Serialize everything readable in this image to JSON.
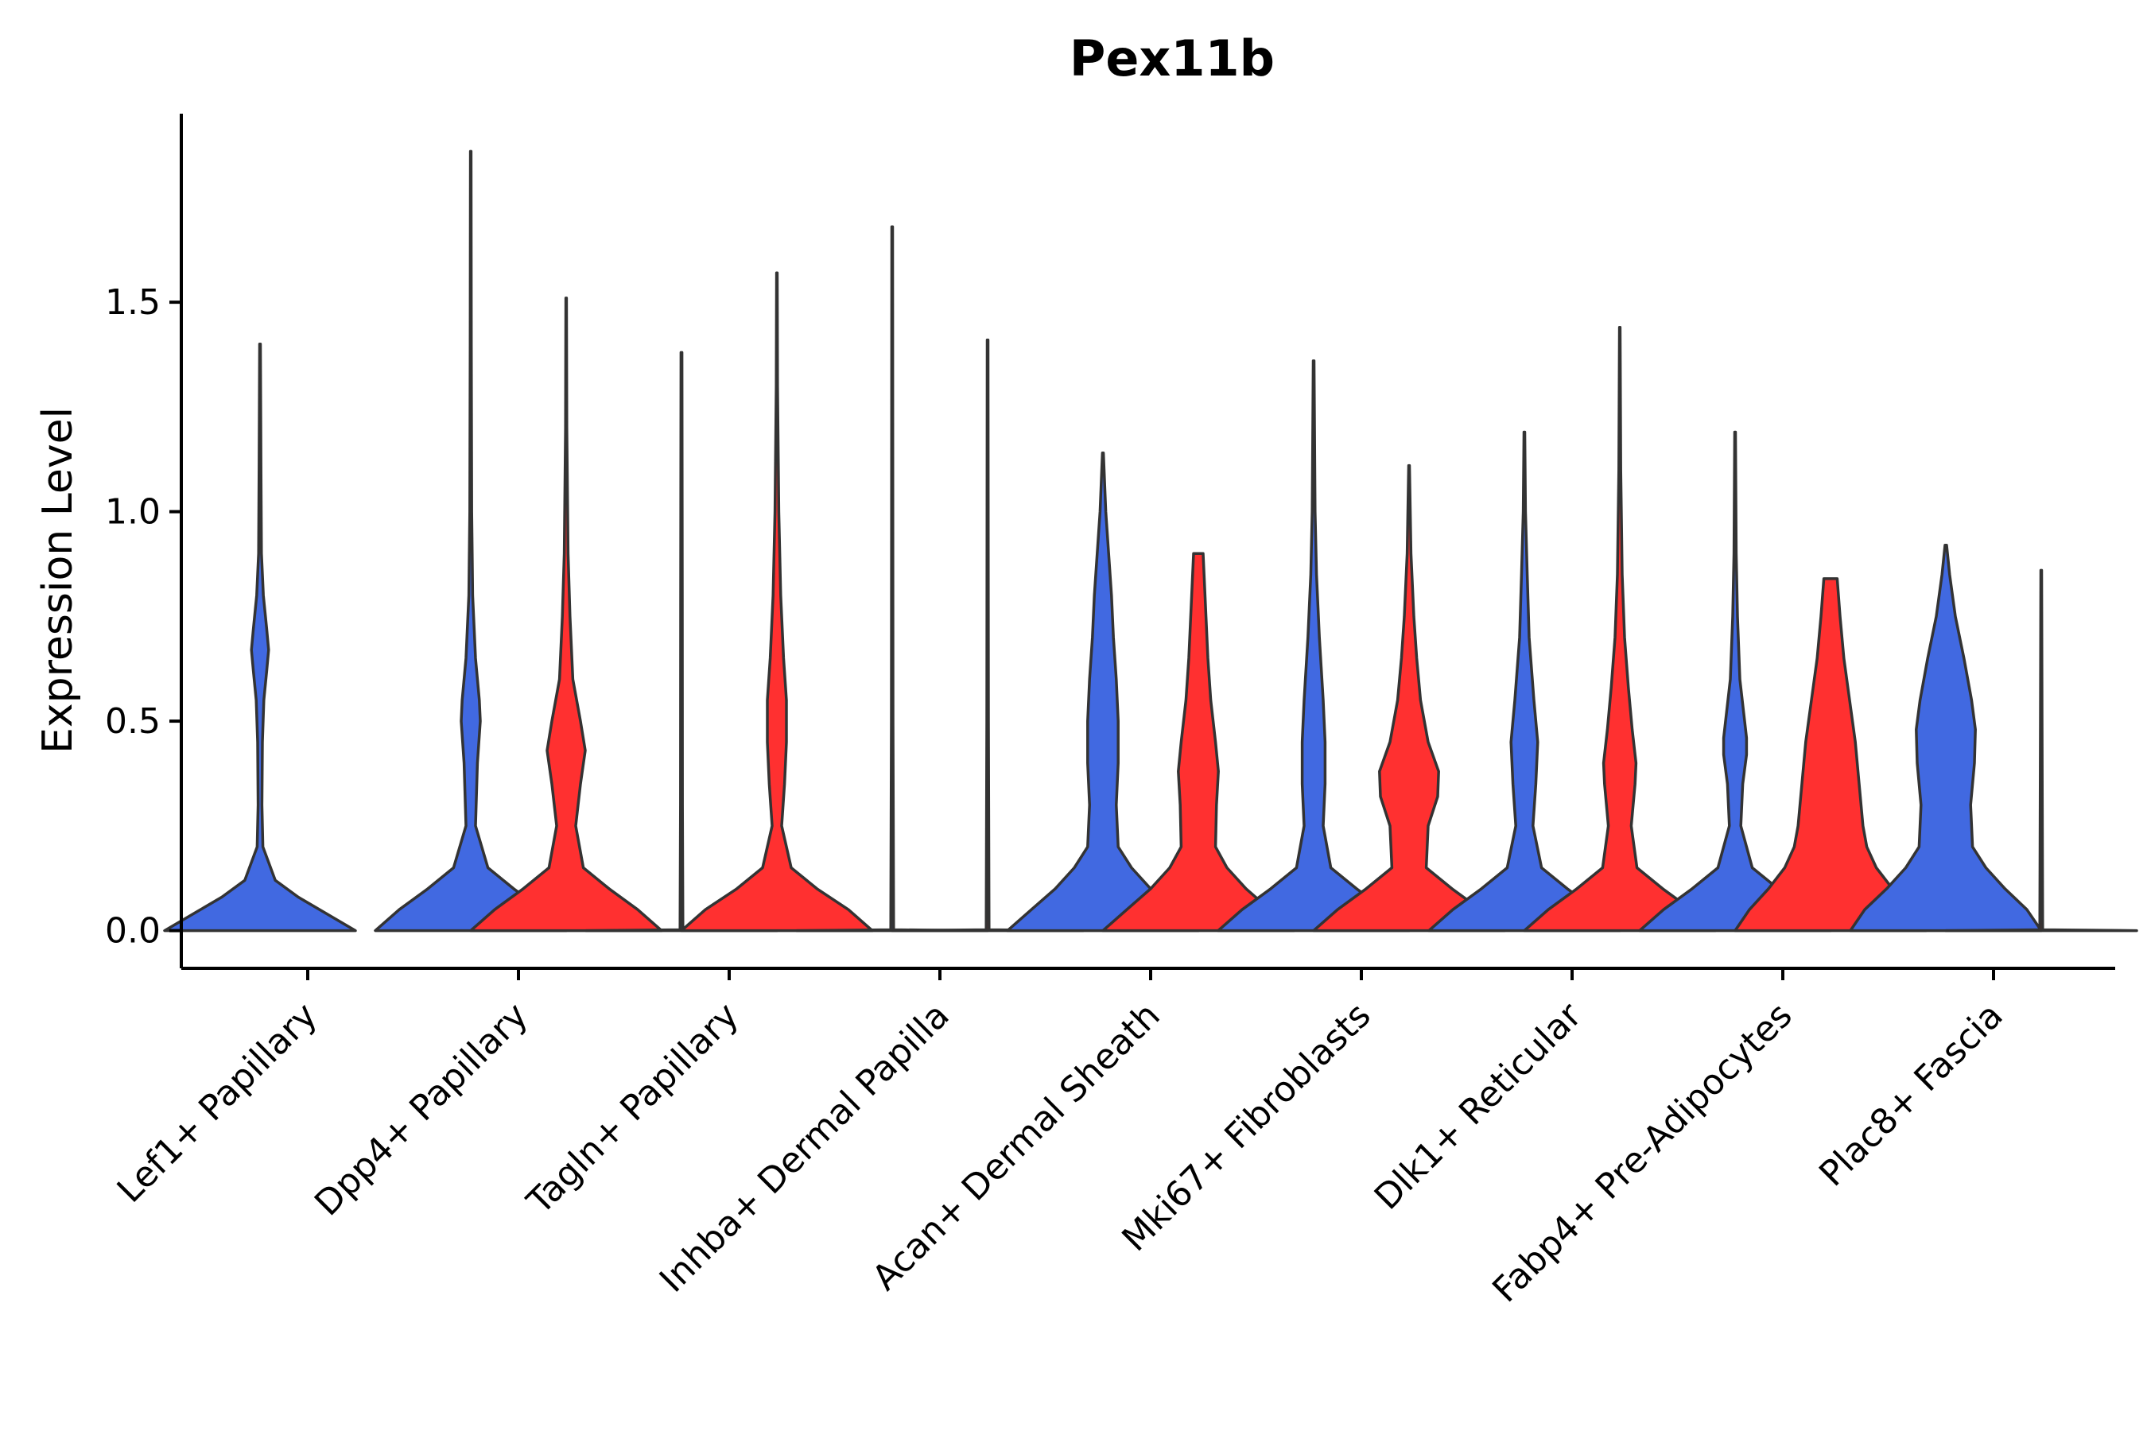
{
  "chart_data": {
    "type": "violin",
    "title": "Pex11b",
    "xlabel": "",
    "ylabel": "Expression Level",
    "ylim": [
      -0.09,
      1.95
    ],
    "yticks": [
      0.0,
      0.5,
      1.0,
      1.5
    ],
    "ytick_labels": [
      "0.0",
      "0.5",
      "1.0",
      "1.5"
    ],
    "grid": false,
    "colors": {
      "group_a": "#4169E1",
      "group_b": "#FF3030",
      "outline": "#333333"
    },
    "categories": [
      "Lef1+ Papillary",
      "Dpp4+ Papillary",
      "Tagln+ Papillary",
      "Inhba+ Dermal Papilla",
      "Acan+ Dermal Sheath",
      "Mki67+ Fibroblasts",
      "Dlk1+ Reticular",
      "Fabp4+ Pre-Adipocytes",
      "Plac8+ Fascia"
    ],
    "violins": [
      {
        "category": "Lef1+ Papillary",
        "group": "blue",
        "max": 1.4,
        "profile": [
          [
            0,
            1.0
          ],
          [
            0.04,
            0.7
          ],
          [
            0.08,
            0.4
          ],
          [
            0.12,
            0.16
          ],
          [
            0.2,
            0.03
          ],
          [
            0.3,
            0.02
          ],
          [
            0.45,
            0.025
          ],
          [
            0.55,
            0.04
          ],
          [
            0.62,
            0.07
          ],
          [
            0.67,
            0.09
          ],
          [
            0.72,
            0.07
          ],
          [
            0.8,
            0.035
          ],
          [
            0.9,
            0.015
          ],
          [
            1.1,
            0.01
          ],
          [
            1.4,
            0.004
          ]
        ]
      },
      {
        "category": "Dpp4+ Papillary",
        "group": "blue",
        "max": 1.86,
        "profile": [
          [
            0,
            1.0
          ],
          [
            0.05,
            0.75
          ],
          [
            0.1,
            0.45
          ],
          [
            0.15,
            0.18
          ],
          [
            0.25,
            0.05
          ],
          [
            0.4,
            0.07
          ],
          [
            0.5,
            0.1
          ],
          [
            0.55,
            0.09
          ],
          [
            0.65,
            0.05
          ],
          [
            0.8,
            0.02
          ],
          [
            1.0,
            0.01
          ],
          [
            1.4,
            0.006
          ],
          [
            1.86,
            0.003
          ]
        ]
      },
      {
        "category": "Dpp4+ Papillary",
        "group": "red",
        "max": 1.51,
        "profile": [
          [
            0,
            1.0
          ],
          [
            0.05,
            0.75
          ],
          [
            0.1,
            0.45
          ],
          [
            0.15,
            0.18
          ],
          [
            0.25,
            0.1
          ],
          [
            0.35,
            0.15
          ],
          [
            0.43,
            0.2
          ],
          [
            0.5,
            0.15
          ],
          [
            0.6,
            0.07
          ],
          [
            0.75,
            0.04
          ],
          [
            0.9,
            0.02
          ],
          [
            1.2,
            0.007
          ],
          [
            1.51,
            0.003
          ]
        ]
      },
      {
        "category": "Tagln+ Papillary",
        "group": "blue",
        "max": 1.38,
        "profile": [
          [
            0,
            1.0
          ],
          [
            0.002,
            0.015
          ],
          [
            0.3,
            0.01
          ],
          [
            0.8,
            0.008
          ],
          [
            1.38,
            0.005
          ]
        ]
      },
      {
        "category": "Tagln+ Papillary",
        "group": "red",
        "max": 1.57,
        "profile": [
          [
            0,
            1.0
          ],
          [
            0.05,
            0.75
          ],
          [
            0.1,
            0.42
          ],
          [
            0.15,
            0.15
          ],
          [
            0.25,
            0.05
          ],
          [
            0.35,
            0.08
          ],
          [
            0.45,
            0.1
          ],
          [
            0.55,
            0.1
          ],
          [
            0.65,
            0.07
          ],
          [
            0.8,
            0.04
          ],
          [
            1.0,
            0.02
          ],
          [
            1.3,
            0.007
          ],
          [
            1.57,
            0.003
          ]
        ]
      },
      {
        "category": "Inhba+ Dermal Papilla",
        "group": "blue",
        "max": 1.68,
        "profile": [
          [
            0,
            1.0
          ],
          [
            0.002,
            0.015
          ],
          [
            0.5,
            0.008
          ],
          [
            1.68,
            0.004
          ]
        ]
      },
      {
        "category": "Inhba+ Dermal Papilla",
        "group": "red",
        "max": 1.41,
        "profile": [
          [
            0,
            1.0
          ],
          [
            0.002,
            0.015
          ],
          [
            0.5,
            0.008
          ],
          [
            1.41,
            0.004
          ]
        ]
      },
      {
        "category": "Acan+ Dermal Sheath",
        "group": "blue",
        "max": 1.14,
        "profile": [
          [
            0,
            1.0
          ],
          [
            0.05,
            0.75
          ],
          [
            0.1,
            0.5
          ],
          [
            0.15,
            0.3
          ],
          [
            0.2,
            0.16
          ],
          [
            0.3,
            0.14
          ],
          [
            0.4,
            0.16
          ],
          [
            0.5,
            0.16
          ],
          [
            0.6,
            0.14
          ],
          [
            0.7,
            0.11
          ],
          [
            0.8,
            0.09
          ],
          [
            0.9,
            0.06
          ],
          [
            1.0,
            0.03
          ],
          [
            1.14,
            0.005
          ]
        ]
      },
      {
        "category": "Acan+ Dermal Sheath",
        "group": "red",
        "max": 0.9,
        "profile": [
          [
            0,
            1.0
          ],
          [
            0.05,
            0.75
          ],
          [
            0.1,
            0.5
          ],
          [
            0.15,
            0.3
          ],
          [
            0.2,
            0.18
          ],
          [
            0.3,
            0.19
          ],
          [
            0.38,
            0.21
          ],
          [
            0.45,
            0.18
          ],
          [
            0.55,
            0.13
          ],
          [
            0.65,
            0.1
          ],
          [
            0.75,
            0.08
          ],
          [
            0.85,
            0.06
          ],
          [
            0.9,
            0.05
          ]
        ]
      },
      {
        "category": "Mki67+ Fibroblasts",
        "group": "blue",
        "max": 1.36,
        "profile": [
          [
            0,
            1.0
          ],
          [
            0.05,
            0.75
          ],
          [
            0.1,
            0.45
          ],
          [
            0.15,
            0.18
          ],
          [
            0.25,
            0.1
          ],
          [
            0.35,
            0.12
          ],
          [
            0.45,
            0.12
          ],
          [
            0.55,
            0.1
          ],
          [
            0.7,
            0.06
          ],
          [
            0.85,
            0.03
          ],
          [
            1.0,
            0.015
          ],
          [
            1.36,
            0.004
          ]
        ]
      },
      {
        "category": "Mki67+ Fibroblasts",
        "group": "red",
        "max": 1.11,
        "profile": [
          [
            0,
            1.0
          ],
          [
            0.05,
            0.75
          ],
          [
            0.1,
            0.45
          ],
          [
            0.15,
            0.18
          ],
          [
            0.25,
            0.2
          ],
          [
            0.32,
            0.3
          ],
          [
            0.38,
            0.31
          ],
          [
            0.45,
            0.2
          ],
          [
            0.55,
            0.12
          ],
          [
            0.65,
            0.08
          ],
          [
            0.75,
            0.05
          ],
          [
            0.9,
            0.02
          ],
          [
            1.11,
            0.004
          ]
        ]
      },
      {
        "category": "Dlk1+ Reticular",
        "group": "blue",
        "max": 1.19,
        "profile": [
          [
            0,
            1.0
          ],
          [
            0.05,
            0.75
          ],
          [
            0.1,
            0.45
          ],
          [
            0.15,
            0.18
          ],
          [
            0.25,
            0.09
          ],
          [
            0.35,
            0.12
          ],
          [
            0.45,
            0.14
          ],
          [
            0.55,
            0.1
          ],
          [
            0.7,
            0.05
          ],
          [
            0.85,
            0.03
          ],
          [
            1.0,
            0.012
          ],
          [
            1.19,
            0.004
          ]
        ]
      },
      {
        "category": "Dlk1+ Reticular",
        "group": "red",
        "max": 1.44,
        "profile": [
          [
            0,
            1.0
          ],
          [
            0.05,
            0.75
          ],
          [
            0.1,
            0.45
          ],
          [
            0.15,
            0.18
          ],
          [
            0.25,
            0.12
          ],
          [
            0.35,
            0.16
          ],
          [
            0.4,
            0.17
          ],
          [
            0.48,
            0.13
          ],
          [
            0.58,
            0.09
          ],
          [
            0.7,
            0.05
          ],
          [
            0.85,
            0.025
          ],
          [
            1.1,
            0.01
          ],
          [
            1.44,
            0.003
          ]
        ]
      },
      {
        "category": "Fabp4+ Pre-Adipocytes",
        "group": "blue",
        "max": 1.19,
        "profile": [
          [
            0,
            1.0
          ],
          [
            0.05,
            0.75
          ],
          [
            0.1,
            0.45
          ],
          [
            0.15,
            0.18
          ],
          [
            0.25,
            0.06
          ],
          [
            0.35,
            0.08
          ],
          [
            0.42,
            0.12
          ],
          [
            0.46,
            0.12
          ],
          [
            0.52,
            0.09
          ],
          [
            0.6,
            0.05
          ],
          [
            0.75,
            0.025
          ],
          [
            0.9,
            0.012
          ],
          [
            1.19,
            0.004
          ]
        ]
      },
      {
        "category": "Fabp4+ Pre-Adipocytes",
        "group": "red",
        "max": 0.84,
        "profile": [
          [
            0,
            1.0
          ],
          [
            0.05,
            0.85
          ],
          [
            0.1,
            0.65
          ],
          [
            0.15,
            0.48
          ],
          [
            0.2,
            0.38
          ],
          [
            0.25,
            0.34
          ],
          [
            0.35,
            0.3
          ],
          [
            0.45,
            0.26
          ],
          [
            0.55,
            0.2
          ],
          [
            0.65,
            0.14
          ],
          [
            0.75,
            0.1
          ],
          [
            0.84,
            0.07
          ]
        ]
      },
      {
        "category": "Plac8+ Fascia",
        "group": "blue",
        "max": 0.92,
        "profile": [
          [
            0,
            1.0
          ],
          [
            0.05,
            0.85
          ],
          [
            0.1,
            0.62
          ],
          [
            0.15,
            0.42
          ],
          [
            0.2,
            0.28
          ],
          [
            0.3,
            0.26
          ],
          [
            0.4,
            0.3
          ],
          [
            0.48,
            0.31
          ],
          [
            0.55,
            0.27
          ],
          [
            0.65,
            0.19
          ],
          [
            0.75,
            0.1
          ],
          [
            0.85,
            0.04
          ],
          [
            0.92,
            0.008
          ]
        ]
      },
      {
        "category": "Plac8+ Fascia",
        "group": "red",
        "max": 0.86,
        "profile": [
          [
            0,
            1.0
          ],
          [
            0.002,
            0.015
          ],
          [
            0.5,
            0.008
          ],
          [
            0.86,
            0.004
          ]
        ]
      }
    ]
  }
}
